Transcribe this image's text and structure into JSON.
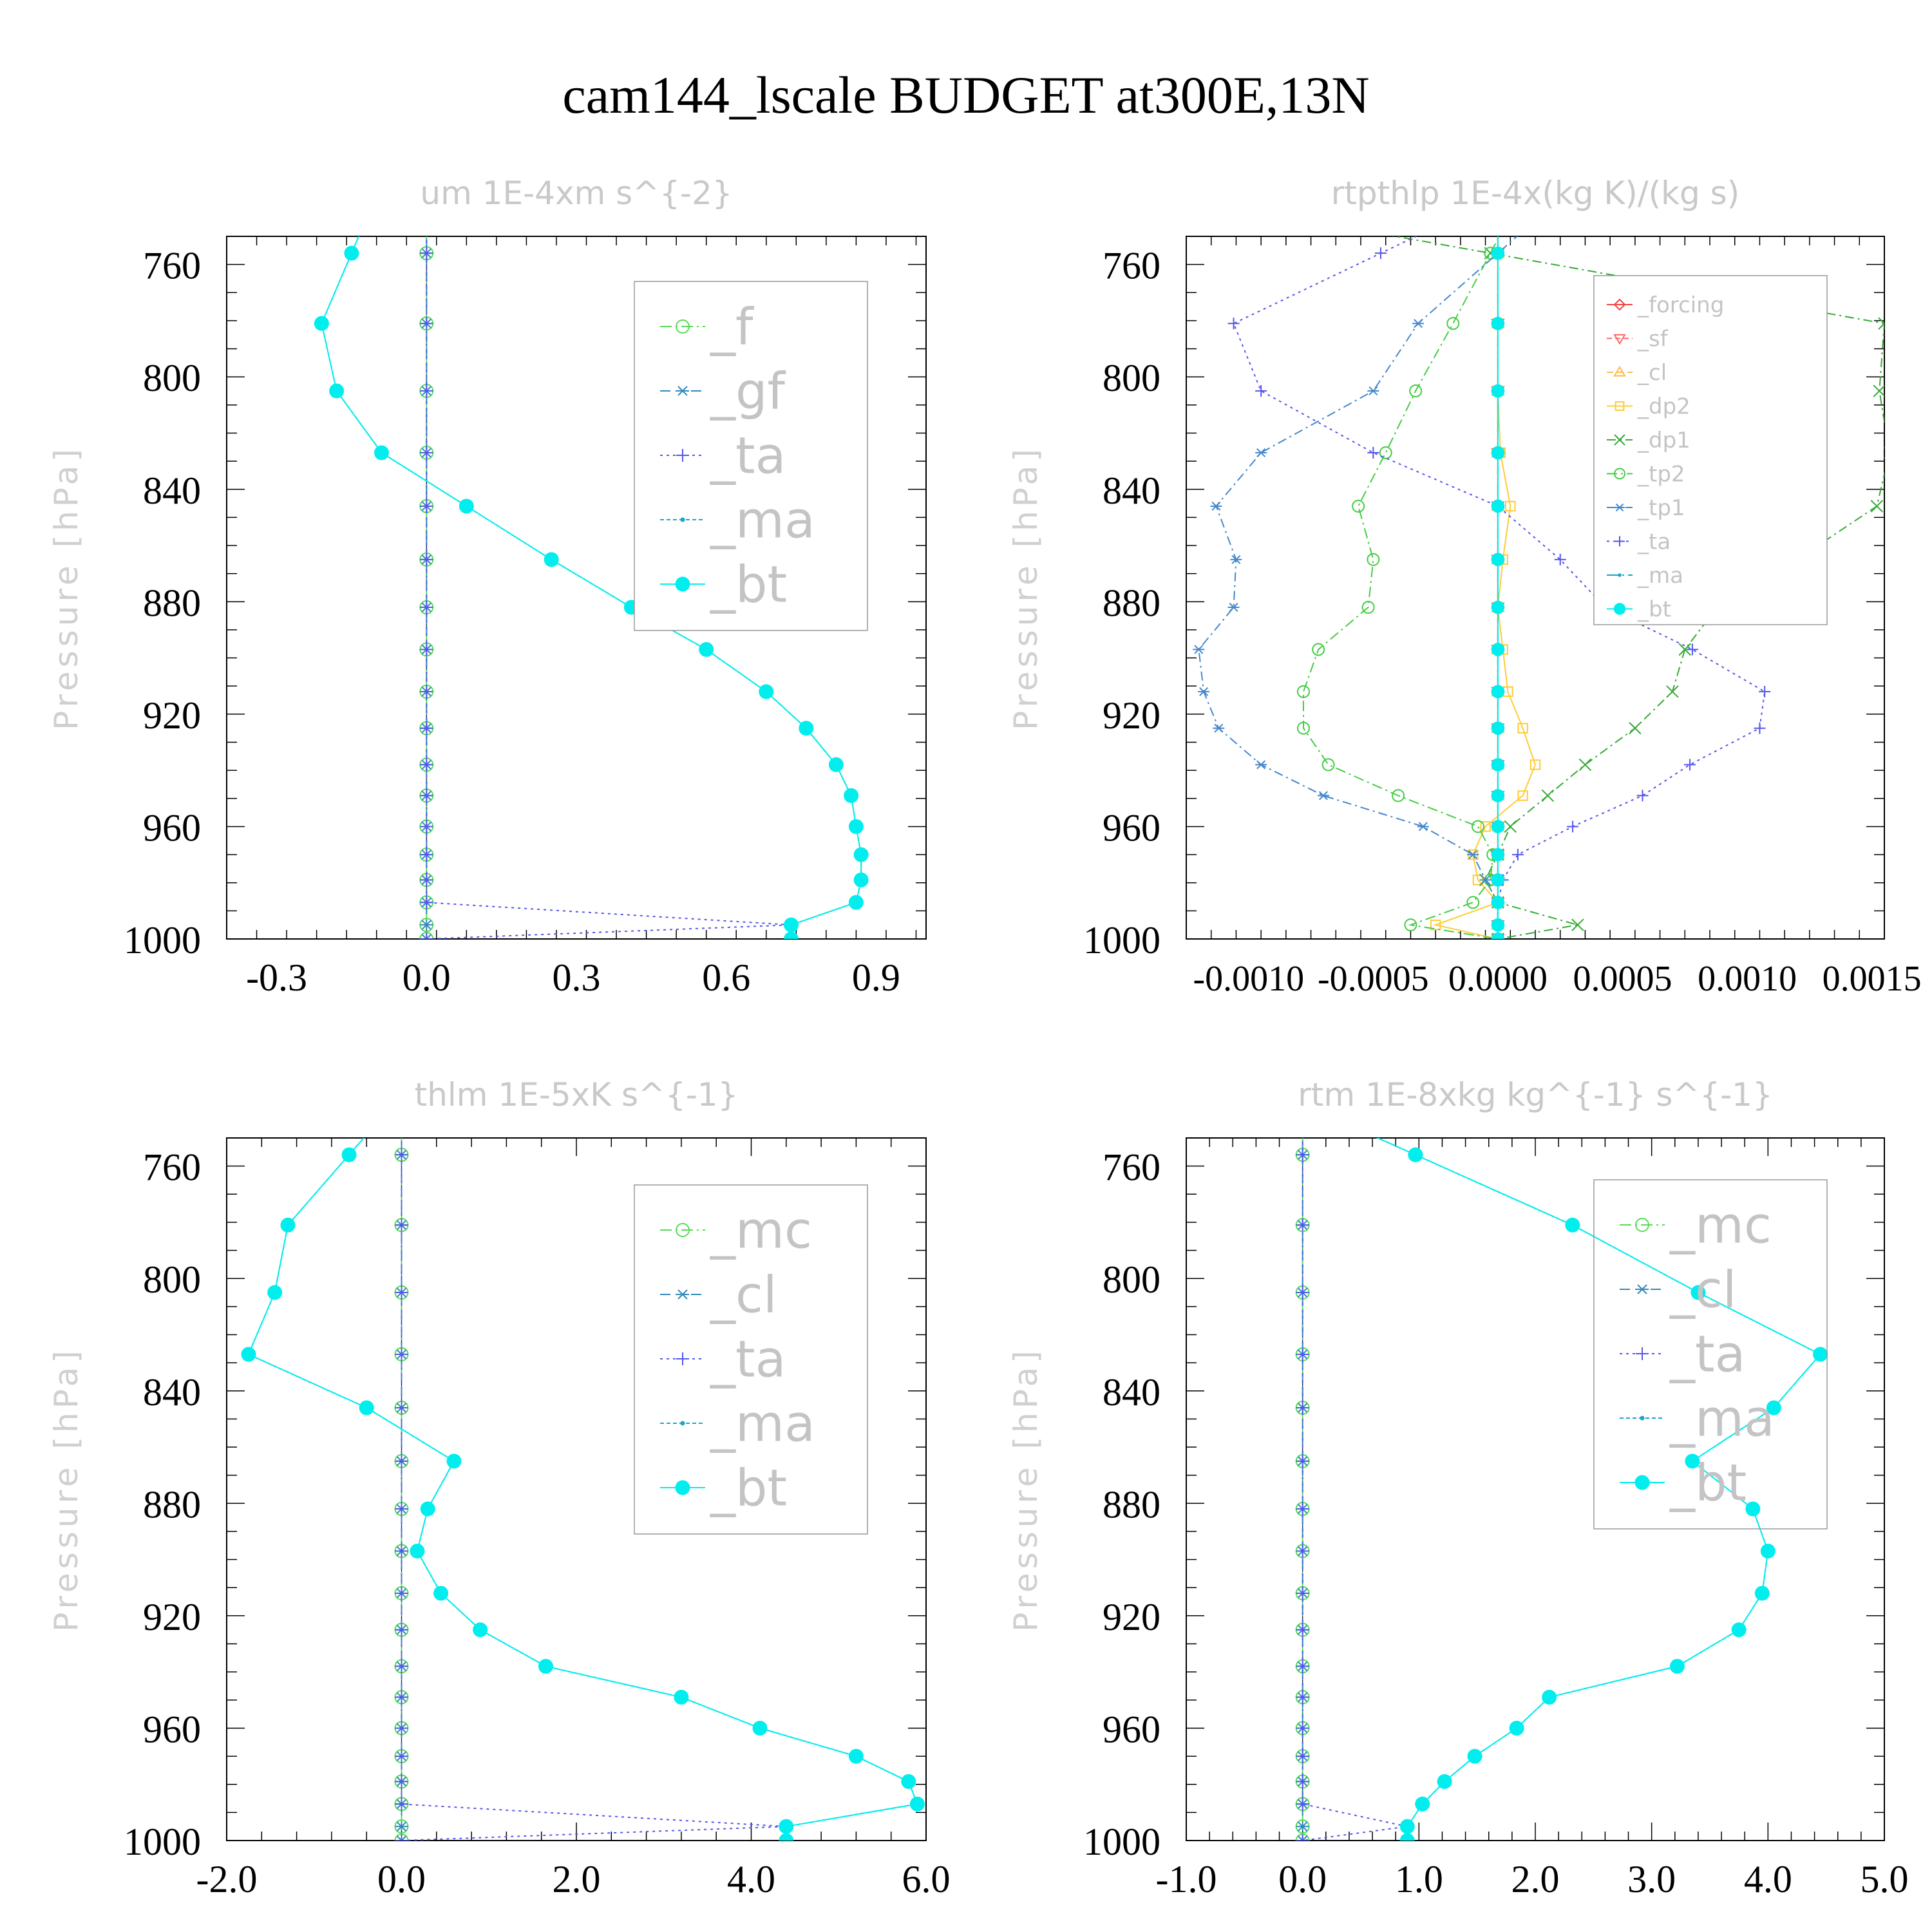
{
  "figure": {
    "title": "cam144_lscale  BUDGET at300E,13N",
    "ylabel": "Pressure [hPa]"
  },
  "colors": {
    "zero_line_green": "#55dd55",
    "bt_cyan": "#00eeee",
    "ma_teal": "#1aa6c8",
    "ta_purple": "#5555ee",
    "tp1_steelblue": "#4488cc",
    "tp2_green": "#44cc44",
    "dp1_green": "#33aa33",
    "dp2_yellow": "#ffcc33",
    "cl_yellow": "#ffbb44",
    "sf_red": "#ff6666",
    "forcing_red": "#ee4444"
  },
  "chart_data": [
    {
      "type": "line",
      "title": "um  1E-4xm s^{-2}",
      "ylabel": "Pressure [hPa]",
      "yaxis": "pressure-inverted",
      "ylim": [
        1000,
        750
      ],
      "yticks": [
        760,
        800,
        840,
        880,
        920,
        960,
        1000
      ],
      "xlim": [
        -0.4,
        1.0
      ],
      "xticks": [
        -0.3,
        0.0,
        0.3,
        0.6,
        0.9
      ],
      "xtick_labels": [
        "-0.3",
        "0.0",
        "0.3",
        "0.6",
        "0.9"
      ],
      "legend_position": "top-right",
      "pressure": [
        756,
        781,
        805,
        827,
        846,
        865,
        882,
        897,
        912,
        925,
        938,
        949,
        960,
        970,
        979,
        987,
        995,
        1000
      ],
      "series": [
        {
          "name": "_f",
          "values": [
            0,
            0,
            0,
            0,
            0,
            0,
            0,
            0,
            0,
            0,
            0,
            0,
            0,
            0,
            0,
            0,
            0,
            0
          ]
        },
        {
          "name": "_gf",
          "values": [
            0,
            0,
            0,
            0,
            0,
            0,
            0,
            0,
            0,
            0,
            0,
            0,
            0,
            0,
            0,
            0,
            0,
            0
          ]
        },
        {
          "name": "_ta",
          "values": [
            0,
            0,
            0,
            0,
            0,
            0,
            0,
            0,
            0,
            0,
            0,
            0,
            0,
            0,
            0,
            0,
            0.73,
            0
          ]
        },
        {
          "name": "_ma",
          "values": [
            -0.15,
            -0.21,
            -0.18,
            -0.09,
            0.08,
            0.25,
            0.41,
            0.56,
            0.68,
            0.76,
            0.82,
            0.85,
            0.86,
            0.87,
            0.87,
            0.86,
            0.73,
            0.73
          ]
        },
        {
          "name": "_bt",
          "values": [
            -0.15,
            -0.21,
            -0.18,
            -0.09,
            0.08,
            0.25,
            0.41,
            0.56,
            0.68,
            0.76,
            0.82,
            0.85,
            0.86,
            0.87,
            0.87,
            0.86,
            0.73,
            0.73
          ]
        }
      ]
    },
    {
      "type": "line",
      "title": "rtpthlp  1E-4x(kg K)/(kg s)",
      "ylabel": "Pressure [hPa]",
      "yaxis": "pressure-inverted",
      "ylim": [
        1000,
        750
      ],
      "yticks": [
        760,
        800,
        840,
        880,
        920,
        960,
        1000
      ],
      "xlim": [
        -0.00125,
        0.00155
      ],
      "xticks": [
        -0.001,
        -0.0005,
        0.0,
        0.0005,
        0.001,
        0.0015
      ],
      "xtick_labels": [
        "-0.0010",
        "-0.0005",
        "0.0000",
        "0.0005",
        "0.0010",
        "0.0015"
      ],
      "legend_position": "top-right",
      "pressure": [
        756,
        781,
        805,
        827,
        846,
        865,
        882,
        897,
        912,
        925,
        938,
        949,
        960,
        970,
        979,
        987,
        995,
        1000
      ],
      "series": [
        {
          "name": "_forcing",
          "values": [
            0,
            0,
            0,
            0,
            0,
            0,
            0,
            0,
            0,
            0,
            0,
            0,
            0,
            0,
            0,
            0,
            0,
            0
          ]
        },
        {
          "name": "_sf",
          "values": [
            0,
            0,
            0,
            0,
            0,
            0,
            0,
            0,
            0,
            0,
            0,
            0,
            0,
            0,
            0,
            0,
            0,
            0
          ]
        },
        {
          "name": "_cl",
          "values": [
            0,
            0,
            0,
            0,
            0,
            0,
            0,
            0,
            0,
            0,
            0,
            0,
            0,
            0,
            0,
            0,
            0,
            0
          ]
        },
        {
          "name": "_dp2",
          "values": [
            0,
            0,
            0,
            1e-05,
            5e-05,
            2e-05,
            0,
            2e-05,
            4e-05,
            0.0001,
            0.00015,
            0.0001,
            -5e-05,
            -0.0001,
            -8e-05,
            0,
            -0.00025,
            0
          ]
        },
        {
          "name": "_dp1",
          "values": [
            -3e-05,
            0.00155,
            0.00153,
            0.00157,
            0.00152,
            0.0012,
            0.00088,
            0.00075,
            0.0007,
            0.00055,
            0.00035,
            0.0002,
            5e-05,
            0,
            -5e-05,
            0,
            0.00032,
            0
          ]
        },
        {
          "name": "_tp2",
          "values": [
            -3e-05,
            -0.00018,
            -0.00033,
            -0.00045,
            -0.00056,
            -0.0005,
            -0.00052,
            -0.00072,
            -0.00078,
            -0.00078,
            -0.00068,
            -0.0004,
            -8e-05,
            -2e-05,
            -3e-05,
            -0.0001,
            -0.00035,
            0
          ]
        },
        {
          "name": "_tp1",
          "values": [
            0,
            -0.00032,
            -0.0005,
            -0.00095,
            -0.00113,
            -0.00105,
            -0.00106,
            -0.0012,
            -0.00118,
            -0.00112,
            -0.00095,
            -0.0007,
            -0.0003,
            -0.0001,
            -5e-05,
            0,
            0,
            0
          ]
        },
        {
          "name": "_ta",
          "values": [
            -0.00047,
            -0.00106,
            -0.00095,
            -0.0005,
            0,
            0.00025,
            0.00043,
            0.00078,
            0.00107,
            0.00105,
            0.00077,
            0.00058,
            0.0003,
            8e-05,
            2e-05,
            0,
            0,
            0
          ]
        },
        {
          "name": "_ma",
          "values": [
            0,
            0,
            0,
            0,
            0,
            0,
            0,
            0,
            0,
            0,
            0,
            0,
            0,
            0,
            0,
            0,
            0,
            0
          ]
        },
        {
          "name": "_bt",
          "values": [
            0,
            0,
            0,
            0,
            0,
            0,
            0,
            0,
            0,
            0,
            0,
            0,
            0,
            0,
            0,
            0,
            0,
            0
          ]
        }
      ]
    },
    {
      "type": "line",
      "title": "thlm  1E-5xK s^{-1}",
      "ylabel": "Pressure [hPa]",
      "yaxis": "pressure-inverted",
      "ylim": [
        1000,
        750
      ],
      "yticks": [
        760,
        800,
        840,
        880,
        920,
        960,
        1000
      ],
      "xlim": [
        -2.0,
        6.0
      ],
      "xticks": [
        -2.0,
        0.0,
        2.0,
        4.0,
        6.0
      ],
      "xtick_labels": [
        "-2.0",
        "0.0",
        "2.0",
        "4.0",
        "6.0"
      ],
      "legend_position": "top-right",
      "pressure": [
        756,
        781,
        805,
        827,
        846,
        865,
        882,
        897,
        912,
        925,
        938,
        949,
        960,
        970,
        979,
        987,
        995,
        1000
      ],
      "series": [
        {
          "name": "_mc",
          "values": [
            0,
            0,
            0,
            0,
            0,
            0,
            0,
            0,
            0,
            0,
            0,
            0,
            0,
            0,
            0,
            0,
            0,
            0
          ]
        },
        {
          "name": "_cl",
          "values": [
            0,
            0,
            0,
            0,
            0,
            0,
            0,
            0,
            0,
            0,
            0,
            0,
            0,
            0,
            0,
            0,
            0,
            0
          ]
        },
        {
          "name": "_ta",
          "values": [
            0,
            0,
            0,
            0,
            0,
            0,
            0,
            0,
            0,
            0,
            0,
            0,
            0,
            0,
            0,
            0,
            4.4,
            0
          ]
        },
        {
          "name": "_ma",
          "values": [
            -0.6,
            -1.3,
            -1.45,
            -1.75,
            -0.4,
            0.6,
            0.3,
            0.18,
            0.45,
            0.9,
            1.65,
            3.2,
            4.1,
            5.2,
            5.8,
            5.9,
            4.4,
            4.4
          ]
        },
        {
          "name": "_bt",
          "values": [
            -0.6,
            -1.3,
            -1.45,
            -1.75,
            -0.4,
            0.6,
            0.3,
            0.18,
            0.45,
            0.9,
            1.65,
            3.2,
            4.1,
            5.2,
            5.8,
            5.9,
            4.4,
            4.4
          ]
        }
      ]
    },
    {
      "type": "line",
      "title": "rtm  1E-8xkg kg^{-1} s^{-1}",
      "ylabel": "Pressure [hPa]",
      "yaxis": "pressure-inverted",
      "ylim": [
        1000,
        750
      ],
      "yticks": [
        760,
        800,
        840,
        880,
        920,
        960,
        1000
      ],
      "xlim": [
        -1.0,
        5.0
      ],
      "xticks": [
        -1.0,
        0.0,
        1.0,
        2.0,
        3.0,
        4.0,
        5.0
      ],
      "xtick_labels": [
        "-1.0",
        "0.0",
        "1.0",
        "2.0",
        "3.0",
        "4.0",
        "5.0"
      ],
      "legend_position": "top-right",
      "pressure": [
        756,
        781,
        805,
        827,
        846,
        865,
        882,
        897,
        912,
        925,
        938,
        949,
        960,
        970,
        979,
        987,
        995,
        1000
      ],
      "series": [
        {
          "name": "_mc",
          "values": [
            0,
            0,
            0,
            0,
            0,
            0,
            0,
            0,
            0,
            0,
            0,
            0,
            0,
            0,
            0,
            0,
            0,
            0
          ]
        },
        {
          "name": "_cl",
          "values": [
            0,
            0,
            0,
            0,
            0,
            0,
            0,
            0,
            0,
            0,
            0,
            0,
            0,
            0,
            0,
            0,
            0,
            0
          ]
        },
        {
          "name": "_ta",
          "values": [
            0,
            0,
            0,
            0,
            0,
            0,
            0,
            0,
            0,
            0,
            0,
            0,
            0,
            0,
            0,
            0,
            0.9,
            0
          ]
        },
        {
          "name": "_ma",
          "values": [
            0.97,
            2.32,
            3.4,
            4.45,
            4.05,
            3.35,
            3.87,
            4.0,
            3.95,
            3.75,
            3.22,
            2.12,
            1.84,
            1.48,
            1.22,
            1.03,
            0.9,
            0.9
          ]
        },
        {
          "name": "_bt",
          "values": [
            0.97,
            2.32,
            3.4,
            4.45,
            4.05,
            3.35,
            3.87,
            4.0,
            3.95,
            3.75,
            3.22,
            2.12,
            1.84,
            1.48,
            1.22,
            1.03,
            0.9,
            0.9
          ]
        }
      ]
    }
  ],
  "styles": {
    "_f": {
      "color": "#55dd55",
      "marker": "circle-open",
      "dash": "18,6,3,6"
    },
    "_gf": {
      "color": "#3388bb",
      "marker": "asterisk",
      "dash": "16,8"
    },
    "_ta": {
      "color": "#5555ee",
      "marker": "plus",
      "dash": "4,6"
    },
    "_ma": {
      "color": "#1aa6c8",
      "marker": "dot-small",
      "dash": "6,4"
    },
    "_bt": {
      "color": "#00eeee",
      "marker": "filled-circle",
      "dash": "none"
    },
    "_mc": {
      "color": "#55dd55",
      "marker": "circle-open",
      "dash": "18,6,3,6"
    },
    "_cl": {
      "color": "#3388bb",
      "marker": "asterisk",
      "dash": "16,8"
    },
    "_forcing": {
      "color": "#ee4444",
      "marker": "diamond-open",
      "dash": "none"
    },
    "_sf": {
      "color": "#ff6666",
      "marker": "triangle-down-open",
      "dash": "8,5"
    },
    "_cl_b": {
      "color": "#ffbb44",
      "marker": "triangle-up-open",
      "dash": "10,6"
    },
    "_dp2": {
      "color": "#ffcc33",
      "marker": "square-open",
      "dash": "none"
    },
    "_dp1": {
      "color": "#33aa33",
      "marker": "x",
      "dash": "14,6,3,6"
    },
    "_tp2": {
      "color": "#44cc44",
      "marker": "circle-open",
      "dash": "16,6,3,6"
    },
    "_tp1": {
      "color": "#4488cc",
      "marker": "asterisk",
      "dash": "14,6,3,6"
    }
  }
}
